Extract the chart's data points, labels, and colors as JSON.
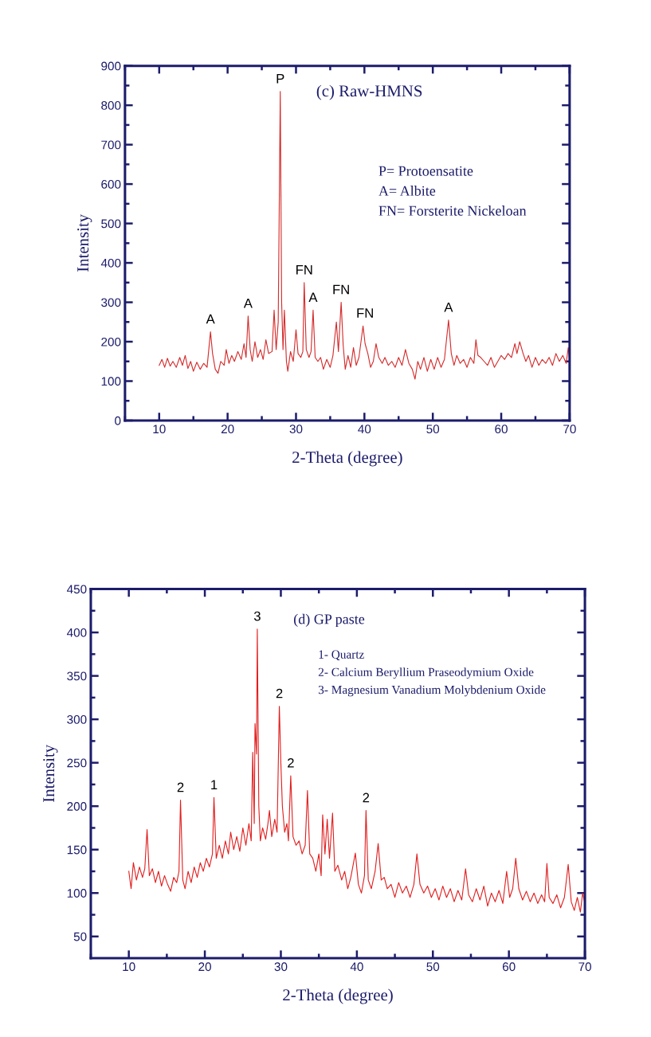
{
  "chart_data": [
    {
      "type": "line",
      "title": "(c) Raw-HMNS",
      "xlabel": "2-Theta (degree)",
      "ylabel": "Intensity",
      "xlim": [
        5,
        70
      ],
      "ylim": [
        0,
        900
      ],
      "xticks": [
        {
          "value": 5,
          "label": null
        },
        10,
        {
          "value": 15,
          "label": null
        },
        20,
        {
          "value": 25,
          "label": null
        },
        30,
        {
          "value": 35,
          "label": null
        },
        40,
        {
          "value": 45,
          "label": null
        },
        50,
        {
          "value": 55,
          "label": null
        },
        60,
        {
          "value": 65,
          "label": null
        },
        70
      ],
      "yticks": [
        0,
        {
          "value": 50,
          "label": null
        },
        100,
        {
          "value": 150,
          "label": null
        },
        200,
        {
          "value": 250,
          "label": null
        },
        300,
        {
          "value": 350,
          "label": null
        },
        400,
        {
          "value": 450,
          "label": null
        },
        500,
        {
          "value": 550,
          "label": null
        },
        600,
        {
          "value": 650,
          "label": null
        },
        700,
        {
          "value": 750,
          "label": null
        },
        800,
        {
          "value": 850,
          "label": null
        },
        900
      ],
      "series": [
        {
          "color": "#d42a2a",
          "x": [
            10,
            10.4,
            10.8,
            11.2,
            11.6,
            12,
            12.5,
            13,
            13.4,
            13.8,
            14.2,
            14.6,
            15,
            15.5,
            16,
            16.5,
            17,
            17.5,
            17.8,
            18.2,
            18.6,
            19,
            19.5,
            19.8,
            20.2,
            20.6,
            21,
            21.5,
            22,
            22.4,
            22.7,
            23,
            23.3,
            23.6,
            24,
            24.4,
            24.8,
            25.2,
            25.6,
            26,
            26.5,
            26.8,
            27.1,
            27.4,
            27.7,
            27.9,
            28.1,
            28.3,
            28.6,
            28.8,
            29.2,
            29.6,
            30,
            30.3,
            30.7,
            31,
            31.2,
            31.5,
            31.9,
            32.2,
            32.5,
            32.8,
            33.2,
            33.6,
            34,
            34.5,
            35,
            35.4,
            35.9,
            36.2,
            36.6,
            36.9,
            37.2,
            37.6,
            38,
            38.4,
            38.8,
            39.2,
            39.8,
            40.1,
            40.5,
            40.9,
            41.3,
            41.7,
            42.1,
            42.6,
            43,
            43.5,
            44,
            44.5,
            45,
            45.5,
            46,
            46.5,
            47,
            47.4,
            47.8,
            48.2,
            48.7,
            49.2,
            49.7,
            50.2,
            50.7,
            51.2,
            51.7,
            52.3,
            52.7,
            53.1,
            53.5,
            54,
            54.5,
            55,
            55.5,
            56,
            56.3,
            56.6,
            57,
            57.5,
            58,
            58.5,
            59,
            59.5,
            60,
            60.5,
            61,
            61.5,
            62,
            62.3,
            62.7,
            63.2,
            63.6,
            64,
            64.5,
            65,
            65.5,
            66,
            66.5,
            67,
            67.5,
            68,
            68.5,
            69,
            69.5,
            69.8,
            70
          ],
          "values": [
            140,
            155,
            135,
            158,
            138,
            150,
            135,
            160,
            140,
            165,
            132,
            150,
            125,
            148,
            130,
            145,
            135,
            225,
            170,
            130,
            120,
            150,
            140,
            180,
            145,
            165,
            150,
            175,
            155,
            195,
            160,
            265,
            180,
            150,
            200,
            160,
            180,
            155,
            205,
            170,
            175,
            280,
            180,
            250,
            835,
            300,
            180,
            280,
            150,
            125,
            175,
            150,
            230,
            170,
            160,
            175,
            350,
            180,
            160,
            175,
            280,
            160,
            150,
            160,
            130,
            155,
            135,
            165,
            250,
            175,
            300,
            190,
            130,
            165,
            135,
            185,
            140,
            160,
            240,
            195,
            170,
            135,
            150,
            195,
            160,
            145,
            160,
            140,
            150,
            135,
            160,
            140,
            180,
            145,
            130,
            105,
            150,
            130,
            160,
            125,
            155,
            130,
            160,
            135,
            155,
            255,
            170,
            140,
            165,
            145,
            155,
            135,
            160,
            145,
            205,
            165,
            160,
            150,
            140,
            160,
            135,
            150,
            165,
            155,
            170,
            160,
            195,
            170,
            200,
            170,
            150,
            165,
            135,
            160,
            140,
            155,
            145,
            160,
            140,
            170,
            150,
            165,
            145,
            185,
            155
          ]
        }
      ],
      "annotations": [
        "P= Protoensatite",
        "A= Albite",
        "FN= Forsterite Nickeloan",
        {
          "text": "A",
          "x": 17.5,
          "y": 225
        },
        {
          "text": "A",
          "x": 23,
          "y": 265
        },
        {
          "text": "P",
          "x": 27.7,
          "y": 835
        },
        {
          "text": "FN",
          "x": 31.2,
          "y": 350
        },
        {
          "text": "A",
          "x": 32.5,
          "y": 280
        },
        {
          "text": "FN",
          "x": 36.6,
          "y": 300
        },
        {
          "text": "FN",
          "x": 40.1,
          "y": 240
        },
        {
          "text": "A",
          "x": 52.3,
          "y": 255
        }
      ]
    },
    {
      "type": "line",
      "title": "(d) GP paste",
      "xlabel": "2-Theta (degree)",
      "ylabel": "Intensity",
      "xlim": [
        5,
        70
      ],
      "ylim": [
        25,
        450
      ],
      "xticks": [
        {
          "value": 5,
          "label": null
        },
        10,
        {
          "value": 15,
          "label": null
        },
        20,
        {
          "value": 25,
          "label": null
        },
        30,
        {
          "value": 35,
          "label": null
        },
        40,
        {
          "value": 45,
          "label": null
        },
        50,
        {
          "value": 55,
          "label": null
        },
        60,
        {
          "value": 65,
          "label": null
        },
        70
      ],
      "yticks": [
        50,
        {
          "value": 75,
          "label": null
        },
        100,
        {
          "value": 125,
          "label": null
        },
        150,
        {
          "value": 175,
          "label": null
        },
        200,
        {
          "value": 225,
          "label": null
        },
        250,
        {
          "value": 275,
          "label": null
        },
        300,
        {
          "value": 325,
          "label": null
        },
        350,
        {
          "value": 375,
          "label": null
        },
        400,
        {
          "value": 425,
          "label": null
        },
        450
      ],
      "series": [
        {
          "color": "#e01e1e",
          "x": [
            10,
            10.3,
            10.6,
            11,
            11.4,
            11.8,
            12.1,
            12.4,
            12.7,
            13.1,
            13.5,
            13.9,
            14.3,
            14.7,
            15.1,
            15.5,
            15.9,
            16.3,
            16.6,
            16.8,
            17.1,
            17.4,
            17.8,
            18.2,
            18.6,
            19,
            19.4,
            19.8,
            20.2,
            20.6,
            21,
            21.2,
            21.5,
            21.9,
            22.3,
            22.7,
            23.1,
            23.4,
            23.8,
            24.2,
            24.6,
            25,
            25.4,
            25.8,
            26.1,
            26.3,
            26.5,
            26.6,
            26.8,
            26.9,
            27.1,
            27.3,
            27.6,
            28,
            28.3,
            28.5,
            28.8,
            29.2,
            29.5,
            29.8,
            30,
            30.2,
            30.5,
            30.8,
            31,
            31.3,
            31.6,
            32,
            32.4,
            32.8,
            33.2,
            33.5,
            33.8,
            34.2,
            34.6,
            35,
            35.3,
            35.5,
            35.8,
            36.1,
            36.4,
            36.8,
            37.1,
            37.5,
            38,
            38.4,
            38.8,
            39.2,
            39.8,
            40.2,
            40.6,
            41,
            41.2,
            41.5,
            41.9,
            42.4,
            42.8,
            43.2,
            43.6,
            44,
            44.5,
            45,
            45.5,
            46,
            46.5,
            47,
            47.5,
            47.9,
            48.3,
            48.8,
            49.3,
            49.8,
            50.3,
            50.8,
            51.3,
            51.8,
            52.3,
            52.8,
            53.3,
            53.8,
            54.3,
            54.7,
            55.2,
            55.7,
            56.2,
            56.7,
            57.2,
            57.7,
            58.2,
            58.7,
            59.2,
            59.7,
            60.1,
            60.5,
            60.9,
            61.3,
            61.8,
            62.3,
            62.8,
            63.3,
            63.8,
            64.3,
            64.7,
            65,
            65.3,
            65.8,
            66.3,
            66.8,
            67.3,
            67.8,
            68.2,
            68.6,
            69,
            69.4,
            69.7,
            70
          ],
          "values": [
            125,
            105,
            135,
            115,
            130,
            118,
            128,
            173,
            120,
            128,
            112,
            125,
            108,
            120,
            110,
            102,
            118,
            112,
            125,
            207,
            115,
            105,
            125,
            112,
            130,
            118,
            135,
            125,
            140,
            130,
            145,
            210,
            140,
            155,
            140,
            160,
            145,
            170,
            150,
            165,
            148,
            175,
            155,
            180,
            160,
            262,
            180,
            295,
            260,
            404,
            200,
            160,
            175,
            162,
            180,
            195,
            165,
            185,
            170,
            315,
            250,
            200,
            170,
            180,
            160,
            235,
            165,
            155,
            160,
            145,
            155,
            218,
            145,
            140,
            125,
            145,
            120,
            190,
            145,
            185,
            140,
            192,
            125,
            132,
            115,
            125,
            105,
            118,
            146,
            110,
            100,
            120,
            195,
            115,
            105,
            125,
            157,
            115,
            118,
            105,
            110,
            95,
            112,
            100,
            108,
            95,
            110,
            145,
            110,
            100,
            108,
            95,
            105,
            92,
            108,
            95,
            105,
            90,
            103,
            92,
            128,
            98,
            90,
            105,
            92,
            108,
            85,
            100,
            90,
            103,
            88,
            125,
            95,
            105,
            140,
            105,
            92,
            102,
            90,
            100,
            88,
            98,
            90,
            134,
            95,
            88,
            98,
            83,
            95,
            133,
            90,
            80,
            95,
            78,
            100,
            88
          ]
        }
      ],
      "annotations": [
        "1- Quartz",
        "2- Calcium Beryllium Praseodymium Oxide",
        "3- Magnesium Vanadium Molybdenium Oxide",
        {
          "text": "2",
          "x": 16.8,
          "y": 207
        },
        {
          "text": "1",
          "x": 21.2,
          "y": 210
        },
        {
          "text": "3",
          "x": 26.9,
          "y": 404
        },
        {
          "text": "2",
          "x": 29.8,
          "y": 315
        },
        {
          "text": "2",
          "x": 31.3,
          "y": 235
        },
        {
          "text": "2",
          "x": 41.2,
          "y": 195
        }
      ]
    }
  ]
}
